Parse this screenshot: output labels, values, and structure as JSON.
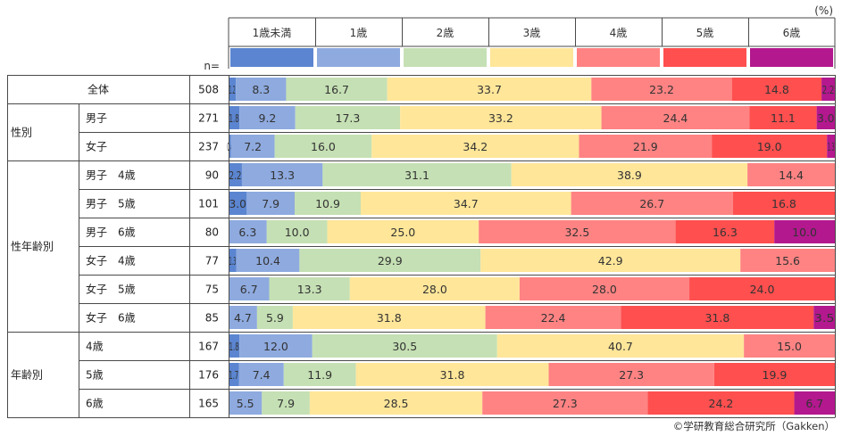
{
  "chart_data": {
    "type": "bar",
    "orientation": "horizontal-stacked-100",
    "unit_label": "(%)",
    "n_label": "n=",
    "legend": [
      {
        "name": "1歳未満",
        "color": "#5b85d0"
      },
      {
        "name": "1歳",
        "color": "#8eaadf"
      },
      {
        "name": "2歳",
        "color": "#c5e0b4"
      },
      {
        "name": "3歳",
        "color": "#ffe699"
      },
      {
        "name": "4歳",
        "color": "#ff8383"
      },
      {
        "name": "5歳",
        "color": "#ff4f4f"
      },
      {
        "name": "6歳",
        "color": "#b3188e"
      }
    ],
    "groups": [
      {
        "label": "",
        "rows": [
          {
            "label": "全体",
            "n": "508",
            "values": [
              1.2,
              8.3,
              16.7,
              33.7,
              23.2,
              14.8,
              2.2
            ]
          }
        ]
      },
      {
        "label": "性別",
        "rows": [
          {
            "label": "男子",
            "n": "271",
            "values": [
              1.8,
              9.2,
              17.3,
              33.2,
              24.4,
              11.1,
              3.0
            ]
          },
          {
            "label": "女子",
            "n": "237",
            "values": [
              0.4,
              7.2,
              16.0,
              34.2,
              21.9,
              19.0,
              1.3
            ]
          }
        ]
      },
      {
        "label": "性年齢別",
        "rows": [
          {
            "label": "男子　4歳",
            "n": "90",
            "values": [
              2.2,
              13.3,
              31.1,
              38.9,
              14.4,
              0,
              0
            ]
          },
          {
            "label": "男子　5歳",
            "n": "101",
            "values": [
              3.0,
              7.9,
              10.9,
              34.7,
              26.7,
              16.8,
              0
            ]
          },
          {
            "label": "男子　6歳",
            "n": "80",
            "values": [
              0,
              6.3,
              10.0,
              25.0,
              32.5,
              16.3,
              10.0
            ]
          },
          {
            "label": "女子　4歳",
            "n": "77",
            "values": [
              1.3,
              10.4,
              29.9,
              42.9,
              15.6,
              0,
              0
            ]
          },
          {
            "label": "女子　5歳",
            "n": "75",
            "values": [
              0,
              6.7,
              13.3,
              28.0,
              28.0,
              24.0,
              0
            ]
          },
          {
            "label": "女子　6歳",
            "n": "85",
            "values": [
              0,
              4.7,
              5.9,
              31.8,
              22.4,
              31.8,
              3.5
            ]
          }
        ]
      },
      {
        "label": "年齢別",
        "rows": [
          {
            "label": "4歳",
            "n": "167",
            "values": [
              1.8,
              12.0,
              30.5,
              40.7,
              15.0,
              0,
              0
            ]
          },
          {
            "label": "5歳",
            "n": "176",
            "values": [
              1.7,
              7.4,
              11.9,
              31.8,
              27.3,
              19.9,
              0
            ]
          },
          {
            "label": "6歳",
            "n": "165",
            "values": [
              0,
              5.5,
              7.9,
              28.5,
              27.3,
              24.2,
              6.7
            ]
          }
        ]
      }
    ],
    "copyright": "©学研教育総合研究所（Gakken）"
  }
}
